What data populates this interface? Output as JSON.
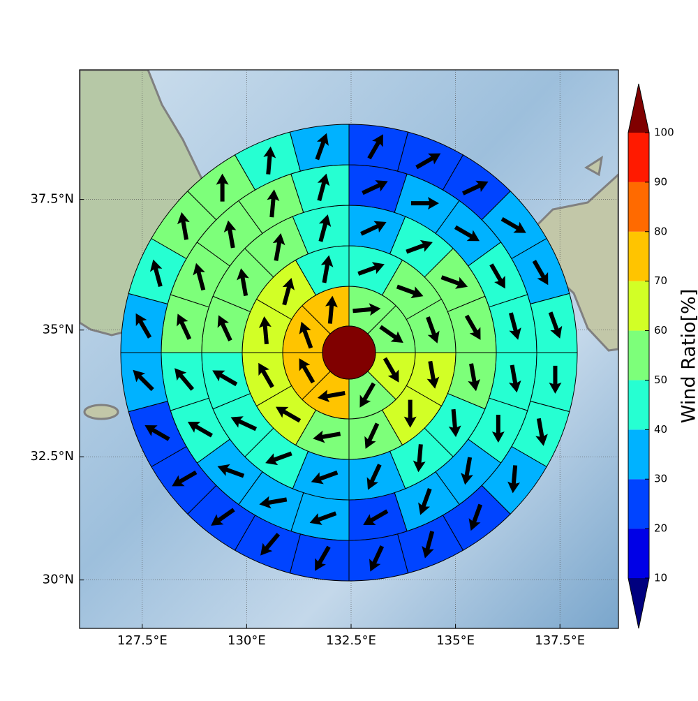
{
  "chart_data": {
    "type": "polar_sector_map",
    "projection": "mercator",
    "xlim": [
      126.0,
      138.9
    ],
    "ylim": [
      29.0,
      39.9
    ],
    "grid": true,
    "xticks": [
      {
        "value": 127.5,
        "label": "127.5°E"
      },
      {
        "value": 130,
        "label": "130°E"
      },
      {
        "value": 132.5,
        "label": "132.5°E"
      },
      {
        "value": 135,
        "label": "135°E"
      },
      {
        "value": 137.5,
        "label": "137.5°E"
      }
    ],
    "yticks": [
      {
        "value": 30,
        "label": "30°N"
      },
      {
        "value": 32.5,
        "label": "32.5°N"
      },
      {
        "value": 35,
        "label": "35°N"
      },
      {
        "value": 37.5,
        "label": "37.5°N"
      }
    ],
    "arrow_color": "#000000",
    "center": {
      "value": 100
    },
    "rings": [
      {
        "values": [
          55,
          55,
          65,
          55,
          75,
          75,
          75,
          75
        ],
        "directions": [
          85,
          125,
          150,
          210,
          260,
          330,
          340,
          5
        ]
      },
      {
        "values": [
          45,
          55,
          55,
          65,
          65,
          55,
          55,
          65,
          65,
          65,
          65,
          45
        ],
        "directions": [
          70,
          110,
          160,
          170,
          180,
          205,
          260,
          300,
          330,
          355,
          15,
          10
        ]
      },
      {
        "values": [
          35,
          45,
          55,
          55,
          55,
          45,
          45,
          35,
          35,
          45,
          45,
          45,
          55,
          55,
          55,
          45
        ],
        "directions": [
          65,
          70,
          110,
          150,
          170,
          175,
          185,
          205,
          250,
          250,
          295,
          300,
          335,
          350,
          10,
          15
        ]
      },
      {
        "values": [
          25,
          35,
          35,
          45,
          45,
          45,
          45,
          35,
          35,
          25,
          35,
          35,
          35,
          45,
          45,
          55,
          55,
          55,
          55,
          45
        ],
        "directions": [
          65,
          90,
          120,
          150,
          165,
          170,
          180,
          190,
          200,
          240,
          250,
          260,
          290,
          300,
          320,
          335,
          345,
          350,
          5,
          15
        ]
      },
      {
        "values": [
          25,
          25,
          25,
          35,
          35,
          45,
          45,
          45,
          35,
          25,
          25,
          25,
          25,
          25,
          25,
          25,
          25,
          35,
          35,
          45,
          55,
          55,
          45,
          35
        ],
        "directions": [
          30,
          60,
          65,
          120,
          150,
          160,
          180,
          170,
          185,
          200,
          195,
          205,
          210,
          220,
          235,
          240,
          300,
          315,
          330,
          345,
          350,
          0,
          5,
          20
        ]
      }
    ],
    "colorbar": {
      "label": "Wind Ratio[%]",
      "levels": [
        10,
        20,
        30,
        40,
        50,
        60,
        70,
        80,
        90,
        100
      ],
      "colors": [
        "#0000e6",
        "#0044ff",
        "#00b2ff",
        "#26ffd2",
        "#7dff7a",
        "#d2ff26",
        "#ffc400",
        "#ff6a00",
        "#ff1a00"
      ],
      "under": "#00007f",
      "over": "#800000"
    }
  }
}
